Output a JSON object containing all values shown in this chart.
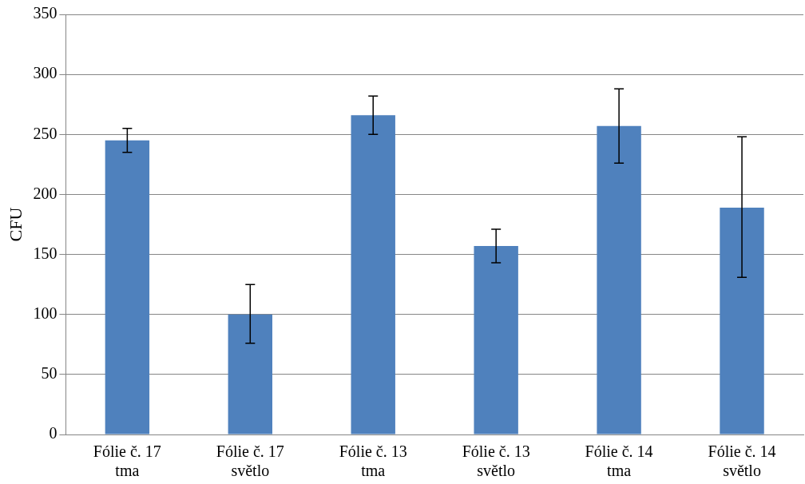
{
  "chart_data": {
    "type": "bar",
    "ylabel": "CFU",
    "categories": [
      "Fólie č. 17 tma",
      "Fólie č. 17 světlo",
      "Fólie č. 13 tma",
      "Fólie č. 13 světlo",
      "Fólie č. 14 tma",
      "Fólie č. 14 světlo"
    ],
    "values": [
      245,
      100,
      266,
      157,
      257,
      189
    ],
    "errors": [
      [
        235,
        255
      ],
      [
        76,
        125
      ],
      [
        250,
        282
      ],
      [
        143,
        171
      ],
      [
        226,
        288
      ],
      [
        131,
        248
      ]
    ],
    "color": "#4f81bd",
    "ylim": [
      0,
      350
    ],
    "yticks": [
      0,
      50,
      100,
      150,
      200,
      250,
      300,
      350
    ],
    "grid": "y",
    "legend": false
  }
}
